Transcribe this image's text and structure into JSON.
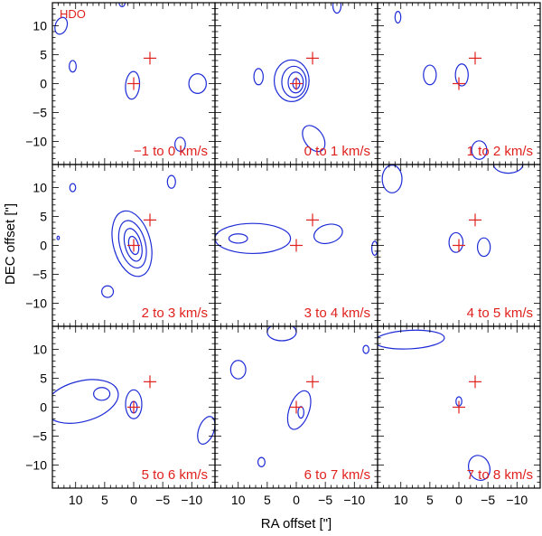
{
  "chart_data": {
    "type": "contour",
    "molecule": "HDO",
    "xlabel": "RA offset [\"]",
    "ylabel": "DEC offset [\"]",
    "xlim": [
      14,
      -14
    ],
    "ylim": [
      -14,
      14
    ],
    "xticks": [
      10,
      5,
      0,
      -5,
      -10
    ],
    "xtick_labels": [
      "10",
      "5",
      "0",
      "−5",
      "−10"
    ],
    "yticks": [
      10,
      5,
      0,
      -5,
      -10
    ],
    "ytick_labels": [
      "10",
      "5",
      "0",
      "−5",
      "−10"
    ],
    "markers": [
      {
        "kind": "plus",
        "x": 0,
        "y": 0
      },
      {
        "kind": "plus",
        "x": -2.8,
        "y": 4.4
      }
    ],
    "panels": [
      {
        "label": "−1 to 0 km/s",
        "contours": [
          {
            "cx": 12.5,
            "cy": 10,
            "rx": 1,
            "ry": 1.5,
            "rot": 20
          },
          {
            "cx": 10.5,
            "cy": 3,
            "rx": 0.6,
            "ry": 1,
            "rot": 0
          },
          {
            "cx": 0.2,
            "cy": -0.3,
            "rx": 1.2,
            "ry": 2.4,
            "rot": 5
          },
          {
            "cx": -11,
            "cy": 0,
            "rx": 1.5,
            "ry": 1.7,
            "rot": 0
          },
          {
            "cx": -8,
            "cy": -10.5,
            "rx": 0.9,
            "ry": 1.2,
            "rot": 0
          },
          {
            "cx": 2,
            "cy": 14,
            "rx": 0.5,
            "ry": 0.7,
            "rot": 0
          }
        ]
      },
      {
        "label": "0 to 1 km/s",
        "contours": [
          {
            "cx": 0.8,
            "cy": 0.5,
            "rx": 3.0,
            "ry": 3.6,
            "rot": 0
          },
          {
            "cx": 0.4,
            "cy": 0.3,
            "rx": 2.1,
            "ry": 2.7,
            "rot": 0
          },
          {
            "cx": 0.1,
            "cy": 0.2,
            "rx": 1.3,
            "ry": 1.8,
            "rot": 0
          },
          {
            "cx": 0,
            "cy": 0,
            "rx": 0.6,
            "ry": 0.9,
            "rot": 0
          },
          {
            "cx": 6.5,
            "cy": 1.2,
            "rx": 0.8,
            "ry": 1.4,
            "rot": 0
          },
          {
            "cx": -3,
            "cy": -9.5,
            "rx": 1.6,
            "ry": 2.5,
            "rot": -35
          },
          {
            "cx": -7,
            "cy": 13.5,
            "rx": 0.7,
            "ry": 1.3,
            "rot": 0
          }
        ]
      },
      {
        "label": "1 to 2 km/s",
        "contours": [
          {
            "cx": 5,
            "cy": 1.5,
            "rx": 1.1,
            "ry": 1.7,
            "rot": 0
          },
          {
            "cx": -0.5,
            "cy": 1.5,
            "rx": 1.1,
            "ry": 1.9,
            "rot": 0
          },
          {
            "cx": 10.5,
            "cy": 11.5,
            "rx": 0.5,
            "ry": 1.0,
            "rot": 0
          },
          {
            "cx": -3.5,
            "cy": -11.5,
            "rx": 1.3,
            "ry": 1.6,
            "rot": 0
          }
        ]
      },
      {
        "label": "2 to 3 km/s",
        "contours": [
          {
            "cx": 0.3,
            "cy": 0.3,
            "rx": 3.2,
            "ry": 5.8,
            "rot": -15
          },
          {
            "cx": 0.2,
            "cy": 0.2,
            "rx": 2.2,
            "ry": 4.2,
            "rot": -15
          },
          {
            "cx": 0.1,
            "cy": 0.1,
            "rx": 1.4,
            "ry": 2.9,
            "rot": -15
          },
          {
            "cx": 0,
            "cy": 0,
            "rx": 0.8,
            "ry": 1.6,
            "rot": -15
          },
          {
            "cx": 10.5,
            "cy": 10,
            "rx": 0.5,
            "ry": 0.7,
            "rot": 0
          },
          {
            "cx": -6.5,
            "cy": 11,
            "rx": 0.7,
            "ry": 1.1,
            "rot": 0
          },
          {
            "cx": 4.5,
            "cy": -8,
            "rx": 1,
            "ry": 1,
            "rot": 0
          },
          {
            "cx": 13,
            "cy": 1.3,
            "rx": 0.2,
            "ry": 0.3,
            "rot": 0
          }
        ]
      },
      {
        "label": "3 to 4 km/s",
        "contours": [
          {
            "cx": 7.5,
            "cy": 1.2,
            "rx": 6.5,
            "ry": 2.6,
            "rot": 0
          },
          {
            "cx": 10,
            "cy": 1.2,
            "rx": 1.6,
            "ry": 0.8,
            "rot": 0
          },
          {
            "cx": -5.5,
            "cy": 2,
            "rx": 2.5,
            "ry": 1.6,
            "rot": -15
          },
          {
            "cx": -13.5,
            "cy": -0.5,
            "rx": 0.5,
            "ry": 1.2,
            "rot": 0
          }
        ]
      },
      {
        "label": "4 to 5 km/s",
        "contours": [
          {
            "cx": 11.5,
            "cy": 11.5,
            "rx": 1.7,
            "ry": 2.4,
            "rot": 0
          },
          {
            "cx": 0.5,
            "cy": 0.5,
            "rx": 1.2,
            "ry": 1.7,
            "rot": 0
          },
          {
            "cx": -4.3,
            "cy": -0.3,
            "rx": 1.1,
            "ry": 1.6,
            "rot": 0
          },
          {
            "cx": -8.5,
            "cy": 14,
            "rx": 2.5,
            "ry": 1.5,
            "rot": 0
          }
        ]
      },
      {
        "label": "5 to 6 km/s",
        "contours": [
          {
            "cx": 9,
            "cy": 1.0,
            "rx": 6.5,
            "ry": 3.5,
            "rot": -15
          },
          {
            "cx": 5.5,
            "cy": 2.3,
            "rx": 1.4,
            "ry": 1.1,
            "rot": 0
          },
          {
            "cx": 0,
            "cy": 0.5,
            "rx": 1.4,
            "ry": 2.5,
            "rot": 0
          },
          {
            "cx": 0,
            "cy": 0,
            "rx": 0.6,
            "ry": 1,
            "rot": 0
          },
          {
            "cx": -12.5,
            "cy": -4,
            "rx": 1.3,
            "ry": 2.5,
            "rot": 20
          }
        ]
      },
      {
        "label": "6 to 7 km/s",
        "contours": [
          {
            "cx": 10,
            "cy": 6.5,
            "rx": 1.3,
            "ry": 1.6,
            "rot": 0
          },
          {
            "cx": -0.5,
            "cy": -0.5,
            "rx": 1.7,
            "ry": 3.5,
            "rot": 20
          },
          {
            "cx": -0.8,
            "cy": -0.9,
            "rx": 0.5,
            "ry": 1,
            "rot": 0
          },
          {
            "cx": 2.5,
            "cy": 13,
            "rx": 2.5,
            "ry": 1.5,
            "rot": 0
          },
          {
            "cx": -12,
            "cy": 10,
            "rx": 0.5,
            "ry": 0.7,
            "rot": 0
          },
          {
            "cx": 6,
            "cy": -9.5,
            "rx": 0.6,
            "ry": 0.8,
            "rot": 0
          }
        ]
      },
      {
        "label": "7 to 8 km/s",
        "contours": [
          {
            "cx": 8.5,
            "cy": 11.7,
            "rx": 6.0,
            "ry": 1.6,
            "rot": -3
          },
          {
            "cx": 0,
            "cy": 1.0,
            "rx": 0.5,
            "ry": 0.8,
            "rot": 0
          },
          {
            "cx": -3.5,
            "cy": -10.5,
            "rx": 1.8,
            "ry": 2.2,
            "rot": -20
          }
        ]
      }
    ]
  }
}
